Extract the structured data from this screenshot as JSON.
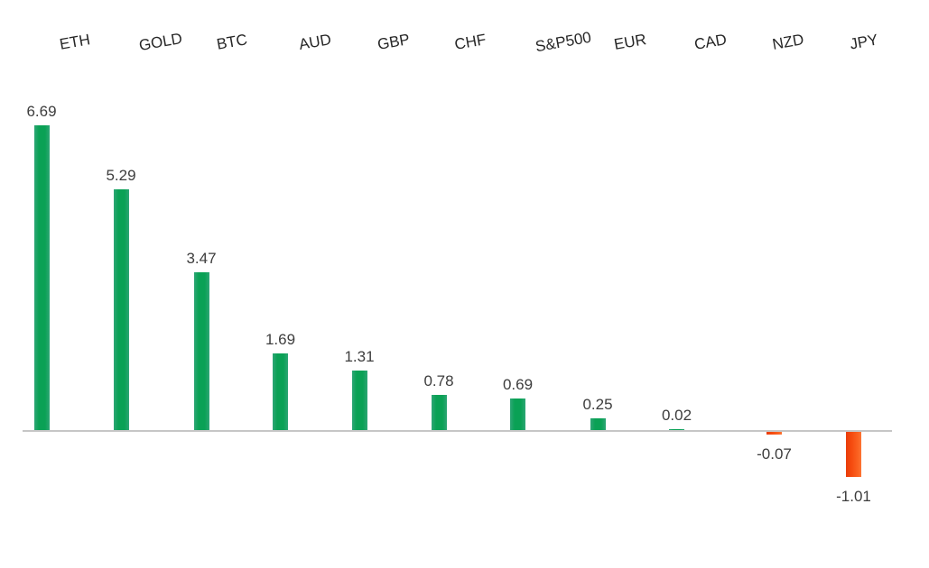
{
  "chart_data": {
    "type": "bar",
    "categories": [
      "ETH",
      "GOLD",
      "BTC",
      "AUD",
      "GBP",
      "CHF",
      "S&P500",
      "EUR",
      "CAD",
      "NZD",
      "JPY"
    ],
    "values": [
      6.69,
      5.29,
      3.47,
      1.69,
      1.31,
      0.78,
      0.69,
      0.25,
      0.02,
      -0.07,
      -1.01
    ],
    "value_labels": [
      "6.69",
      "5.29",
      "3.47",
      "1.69",
      "1.31",
      "0.78",
      "0.69",
      "0.25",
      "0.02",
      "-0.07",
      "-1.01"
    ],
    "title": "",
    "xlabel": "",
    "ylabel": "",
    "ylim": [
      -1.5,
      7
    ],
    "grid": false,
    "legend": false,
    "orientation": "vertical",
    "category_label_position": "top",
    "category_label_rotation_deg": -10,
    "data_labels": true,
    "colors": {
      "positive_bar": "#0aa155",
      "negative_bar": "#f54a0e",
      "axis_line": "#c6c6c6",
      "value_label_text": "#3d3d3d",
      "category_label_text": "#262626",
      "background": "#ffffff"
    }
  }
}
